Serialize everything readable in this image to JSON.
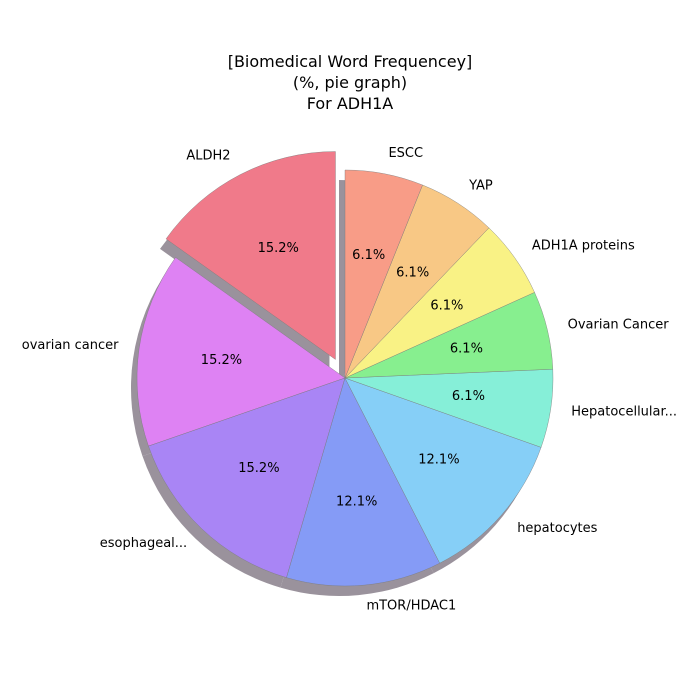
{
  "chart": {
    "title_lines": [
      "[Biomedical Word Frequencey]",
      "(%, pie graph)",
      "For ADH1A"
    ]
  },
  "chart_data": {
    "type": "pie",
    "title": "[Biomedical Word Frequencey]\n(%, pie graph)\nFor ADH1A",
    "start_angle_deg": 90,
    "direction": "counterclockwise",
    "shadow": true,
    "slices": [
      {
        "label": "ALDH2",
        "value": 15.2,
        "pct_label": "15.2%",
        "color": "#f07a8a",
        "exploded": true
      },
      {
        "label": "ovarian cancer",
        "value": 15.2,
        "pct_label": "15.2%",
        "color": "#de82f3",
        "exploded": false
      },
      {
        "label": "esophageal...",
        "value": 15.2,
        "pct_label": "15.2%",
        "color": "#a985f5",
        "exploded": false
      },
      {
        "label": "mTOR/HDAC1",
        "value": 12.1,
        "pct_label": "12.1%",
        "color": "#859bf6",
        "exploded": false
      },
      {
        "label": "hepatocytes",
        "value": 12.1,
        "pct_label": "12.1%",
        "color": "#86cff7",
        "exploded": false
      },
      {
        "label": "Hepatocellular...",
        "value": 6.1,
        "pct_label": "6.1%",
        "color": "#86efd8",
        "exploded": false
      },
      {
        "label": "Ovarian Cancer",
        "value": 6.1,
        "pct_label": "6.1%",
        "color": "#87ef8f",
        "exploded": false
      },
      {
        "label": "ADH1A proteins",
        "value": 6.1,
        "pct_label": "6.1%",
        "color": "#f9f285",
        "exploded": false
      },
      {
        "label": "YAP",
        "value": 6.1,
        "pct_label": "6.1%",
        "color": "#f8c885",
        "exploded": false
      },
      {
        "label": "ESCC",
        "value": 6.1,
        "pct_label": "6.1%",
        "color": "#f89c87",
        "exploded": false
      }
    ]
  }
}
